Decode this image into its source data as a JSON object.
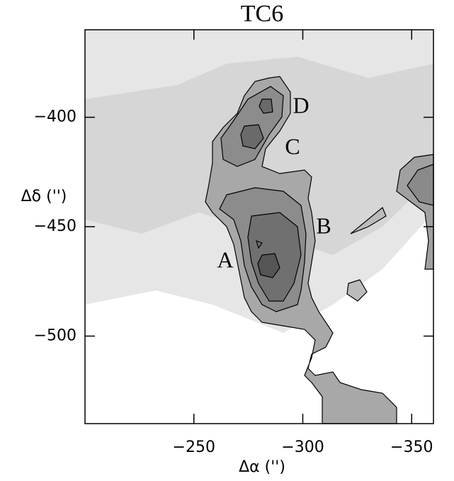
{
  "chart_data": {
    "type": "map",
    "title": "TC6",
    "xlabel": "Δα ('')",
    "ylabel": "Δδ ('')",
    "xlim": [
      -200,
      -360
    ],
    "ylim": [
      -540,
      -360
    ],
    "xticks": [
      {
        "value": -250,
        "label": "−250"
      },
      {
        "value": -300,
        "label": "−300"
      },
      {
        "value": -350,
        "label": "−350"
      }
    ],
    "yticks": [
      {
        "value": -400,
        "label": "−400"
      },
      {
        "value": -450,
        "label": "−450"
      },
      {
        "value": -500,
        "label": "−500"
      }
    ],
    "annotations": [
      "A",
      "B",
      "C",
      "D"
    ]
  }
}
